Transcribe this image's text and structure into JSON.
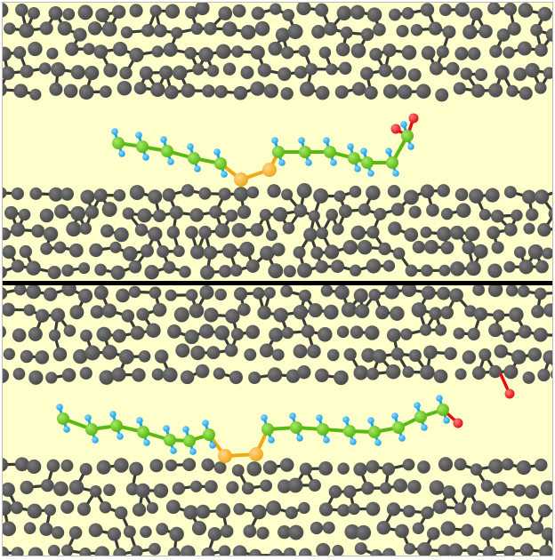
{
  "colors": {
    "background": "#ffffcc",
    "carbon_framework": "#4a4a4a",
    "carbon_highlight": "#7a7a7a",
    "chain_carbon": "#5ab812",
    "hydrogen": "#1aa3e8",
    "sulfur": "#f0a81a",
    "oxygen": "#e01010",
    "divider": "#000000"
  },
  "panels": [
    {
      "name": "top",
      "description_visible": false
    },
    {
      "name": "bottom",
      "description_visible": false
    }
  ]
}
